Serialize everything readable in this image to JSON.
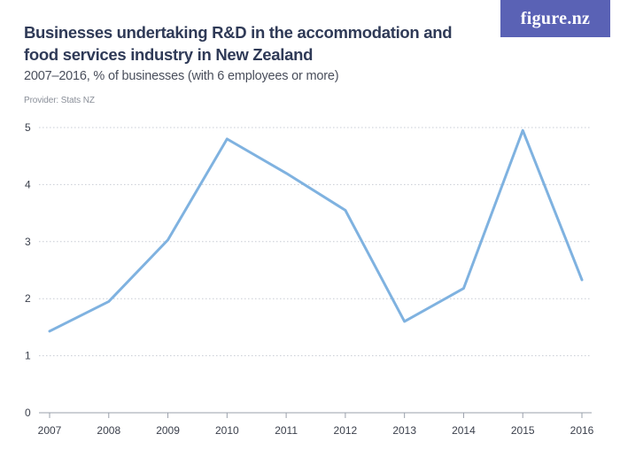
{
  "header": {
    "title": "Businesses undertaking R&D in the accommodation and food services industry in New Zealand",
    "subtitle": "2007–2016, % of businesses (with 6 employees or more)",
    "provider": "Provider: Stats NZ",
    "logo_text": "figure.nz"
  },
  "colors": {
    "line": "#7fb2e0",
    "grid": "#c8ccd4",
    "logo_bg": "#5a62b5"
  },
  "chart_data": {
    "type": "line",
    "title": "Businesses undertaking R&D in the accommodation and food services industry in New Zealand",
    "subtitle": "2007–2016, % of businesses (with 6 employees or more)",
    "categories": [
      "2007",
      "2008",
      "2009",
      "2010",
      "2011",
      "2012",
      "2013",
      "2014",
      "2015",
      "2016"
    ],
    "series": [
      {
        "values": [
          1.43,
          1.95,
          3.03,
          4.8,
          4.2,
          3.55,
          1.6,
          2.18,
          4.95,
          2.33
        ]
      }
    ],
    "ylim": [
      0,
      5
    ],
    "yticks": [
      "0",
      "1",
      "2",
      "3",
      "4",
      "5"
    ],
    "grid": true
  }
}
